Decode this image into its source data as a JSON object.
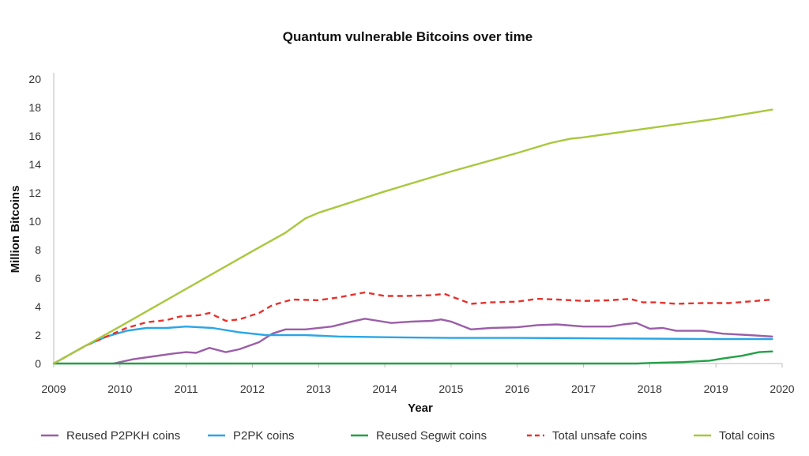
{
  "chart_data": {
    "type": "line",
    "title": "Quantum vulnerable Bitcoins over time",
    "xlabel": "Year",
    "ylabel": "Million Bitcoins",
    "xlim": [
      2009,
      2020
    ],
    "ylim": [
      0,
      20
    ],
    "xticks": [
      "2009",
      "2010",
      "2011",
      "2012",
      "2013",
      "2014",
      "2015",
      "2016",
      "2017",
      "2018",
      "2019",
      "2020"
    ],
    "yticks": [
      "0",
      "2",
      "4",
      "6",
      "8",
      "10",
      "12",
      "14",
      "16",
      "18",
      "20"
    ],
    "grid": false,
    "legend_position": "bottom",
    "series": [
      {
        "name": "Reused P2PKH coins",
        "color": "#9b5ea8",
        "style": "solid",
        "points": [
          [
            2009.9,
            0
          ],
          [
            2010.2,
            0.3
          ],
          [
            2010.5,
            0.5
          ],
          [
            2010.8,
            0.7
          ],
          [
            2011.0,
            0.8
          ],
          [
            2011.15,
            0.75
          ],
          [
            2011.35,
            1.1
          ],
          [
            2011.6,
            0.8
          ],
          [
            2011.8,
            1.0
          ],
          [
            2012.1,
            1.5
          ],
          [
            2012.3,
            2.1
          ],
          [
            2012.5,
            2.4
          ],
          [
            2012.8,
            2.4
          ],
          [
            2013.2,
            2.6
          ],
          [
            2013.5,
            2.95
          ],
          [
            2013.7,
            3.15
          ],
          [
            2013.9,
            3.0
          ],
          [
            2014.1,
            2.85
          ],
          [
            2014.4,
            2.95
          ],
          [
            2014.7,
            3.0
          ],
          [
            2014.85,
            3.1
          ],
          [
            2015.0,
            2.95
          ],
          [
            2015.3,
            2.4
          ],
          [
            2015.6,
            2.5
          ],
          [
            2016.0,
            2.55
          ],
          [
            2016.3,
            2.7
          ],
          [
            2016.6,
            2.75
          ],
          [
            2017.0,
            2.6
          ],
          [
            2017.4,
            2.6
          ],
          [
            2017.6,
            2.75
          ],
          [
            2017.8,
            2.85
          ],
          [
            2018.0,
            2.45
          ],
          [
            2018.2,
            2.5
          ],
          [
            2018.4,
            2.3
          ],
          [
            2018.8,
            2.3
          ],
          [
            2019.1,
            2.1
          ],
          [
            2019.5,
            2.0
          ],
          [
            2019.85,
            1.9
          ]
        ]
      },
      {
        "name": "P2PK coins",
        "color": "#2aa6e6",
        "style": "solid",
        "points": [
          [
            2009.0,
            0
          ],
          [
            2009.5,
            1.3
          ],
          [
            2009.8,
            1.9
          ],
          [
            2010.1,
            2.3
          ],
          [
            2010.4,
            2.5
          ],
          [
            2010.7,
            2.5
          ],
          [
            2011.0,
            2.6
          ],
          [
            2011.4,
            2.5
          ],
          [
            2011.8,
            2.2
          ],
          [
            2012.2,
            2.0
          ],
          [
            2012.8,
            2.0
          ],
          [
            2013.3,
            1.9
          ],
          [
            2014.0,
            1.85
          ],
          [
            2015.0,
            1.8
          ],
          [
            2016.0,
            1.8
          ],
          [
            2017.0,
            1.78
          ],
          [
            2018.0,
            1.75
          ],
          [
            2019.0,
            1.72
          ],
          [
            2019.85,
            1.72
          ]
        ]
      },
      {
        "name": "Reused Segwit coins",
        "color": "#23a047",
        "style": "solid",
        "points": [
          [
            2009.0,
            0
          ],
          [
            2017.8,
            0
          ],
          [
            2018.1,
            0.05
          ],
          [
            2018.5,
            0.1
          ],
          [
            2018.9,
            0.2
          ],
          [
            2019.1,
            0.35
          ],
          [
            2019.4,
            0.55
          ],
          [
            2019.65,
            0.8
          ],
          [
            2019.85,
            0.85
          ]
        ]
      },
      {
        "name": "Total unsafe coins",
        "color": "#e6322d",
        "style": "dashed",
        "points": [
          [
            2009.0,
            0
          ],
          [
            2009.5,
            1.3
          ],
          [
            2009.8,
            1.9
          ],
          [
            2010.1,
            2.5
          ],
          [
            2010.4,
            2.9
          ],
          [
            2010.7,
            3.05
          ],
          [
            2010.9,
            3.3
          ],
          [
            2011.2,
            3.4
          ],
          [
            2011.35,
            3.55
          ],
          [
            2011.6,
            3.0
          ],
          [
            2011.8,
            3.1
          ],
          [
            2012.1,
            3.55
          ],
          [
            2012.3,
            4.1
          ],
          [
            2012.6,
            4.5
          ],
          [
            2013.0,
            4.45
          ],
          [
            2013.3,
            4.65
          ],
          [
            2013.7,
            5.0
          ],
          [
            2014.0,
            4.75
          ],
          [
            2014.3,
            4.75
          ],
          [
            2014.7,
            4.8
          ],
          [
            2014.9,
            4.9
          ],
          [
            2015.3,
            4.2
          ],
          [
            2015.6,
            4.3
          ],
          [
            2016.0,
            4.35
          ],
          [
            2016.3,
            4.55
          ],
          [
            2016.6,
            4.5
          ],
          [
            2017.0,
            4.4
          ],
          [
            2017.4,
            4.45
          ],
          [
            2017.7,
            4.55
          ],
          [
            2017.9,
            4.3
          ],
          [
            2018.1,
            4.3
          ],
          [
            2018.4,
            4.2
          ],
          [
            2018.8,
            4.25
          ],
          [
            2019.2,
            4.25
          ],
          [
            2019.6,
            4.4
          ],
          [
            2019.85,
            4.5
          ]
        ]
      },
      {
        "name": "Total coins",
        "color": "#a8c83c",
        "style": "solid",
        "points": [
          [
            2009.0,
            0
          ],
          [
            2010.0,
            2.6
          ],
          [
            2011.0,
            5.25
          ],
          [
            2012.0,
            7.9
          ],
          [
            2012.5,
            9.2
          ],
          [
            2012.8,
            10.2
          ],
          [
            2013.0,
            10.6
          ],
          [
            2014.0,
            12.1
          ],
          [
            2015.0,
            13.5
          ],
          [
            2016.0,
            14.8
          ],
          [
            2016.5,
            15.5
          ],
          [
            2016.8,
            15.8
          ],
          [
            2017.0,
            15.9
          ],
          [
            2018.0,
            16.55
          ],
          [
            2019.0,
            17.2
          ],
          [
            2019.85,
            17.85
          ]
        ]
      }
    ]
  }
}
